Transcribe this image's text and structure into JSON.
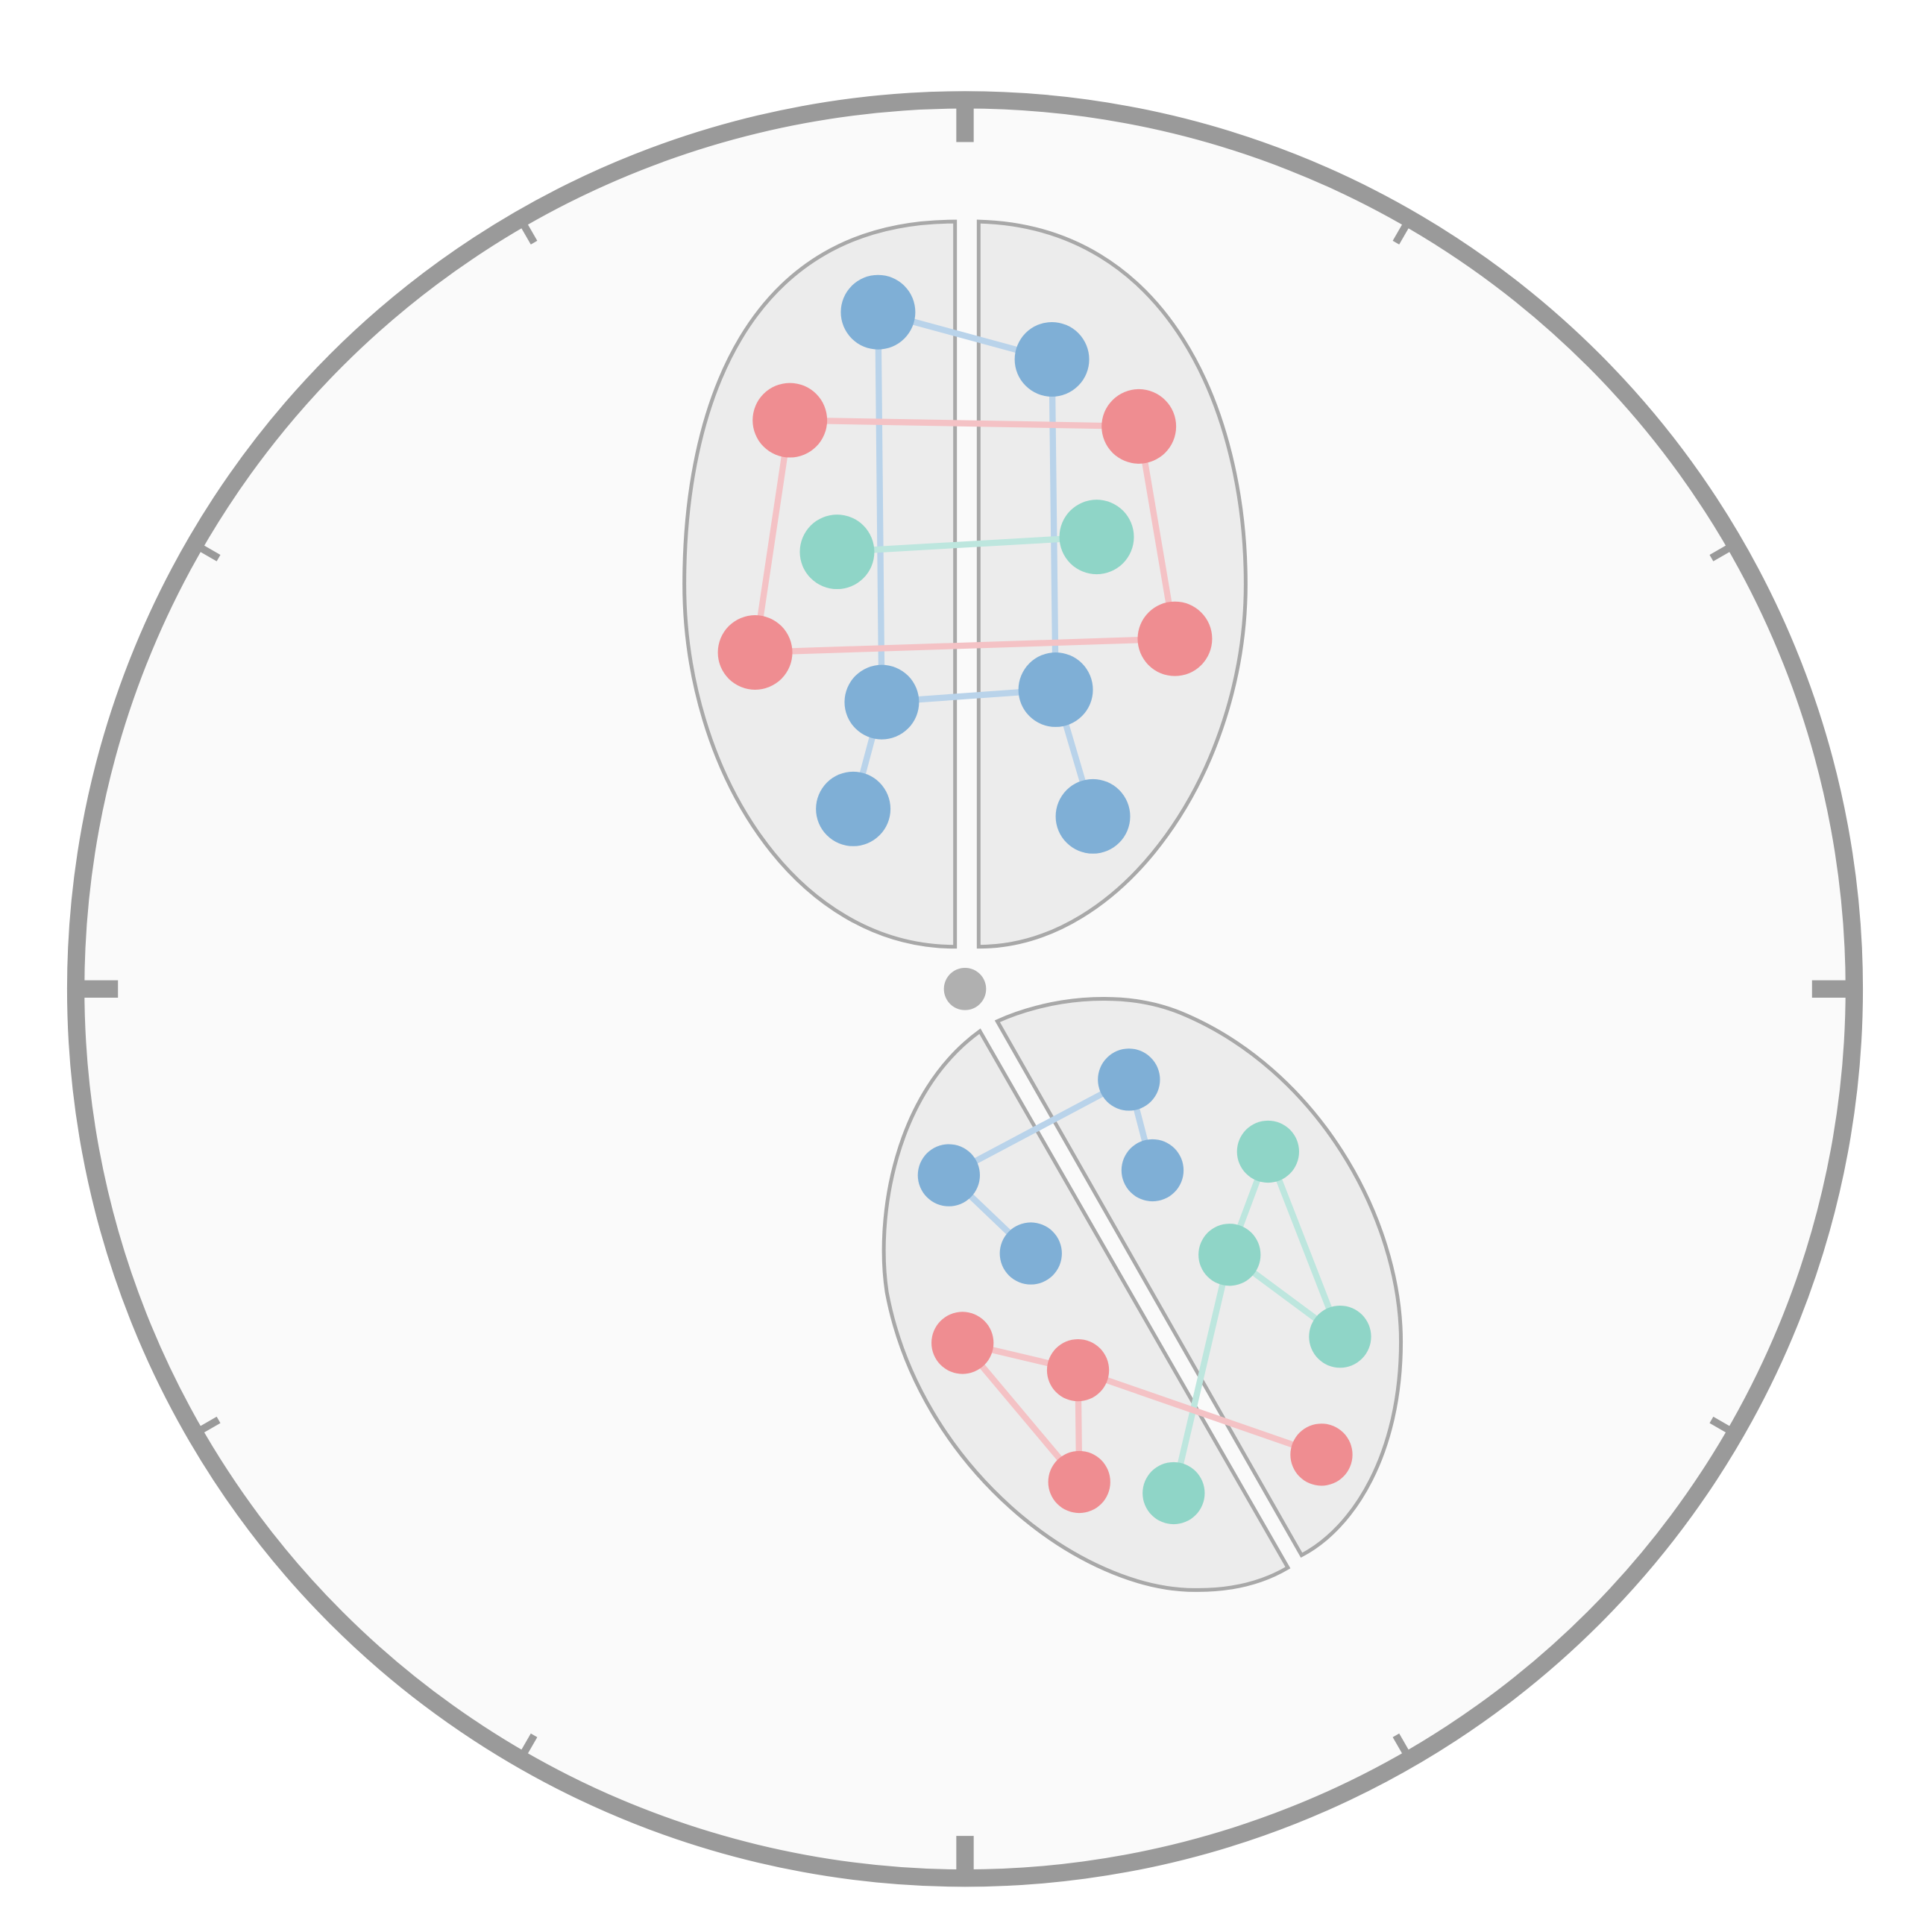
{
  "colors": {
    "dial_face": "#fafafa",
    "dial_ring": "#9a9a9a",
    "tick": "#9a9a9a",
    "hub": "#b0b0b0",
    "petal_fill": "#ececec",
    "petal_stroke": "#a8a8a8",
    "blue": "#7fafd6",
    "red": "#ef8d91",
    "teal": "#8fd5c7",
    "edge_blue": "#b9d3ea",
    "edge_red": "#f4c2c5",
    "edge_teal": "#bde6de"
  },
  "dial": {
    "tick_count": 12,
    "major_ticks": [
      0,
      3,
      6,
      9
    ]
  },
  "icons": {
    "hub": "center-dot-icon",
    "node": "circle-node-icon"
  }
}
